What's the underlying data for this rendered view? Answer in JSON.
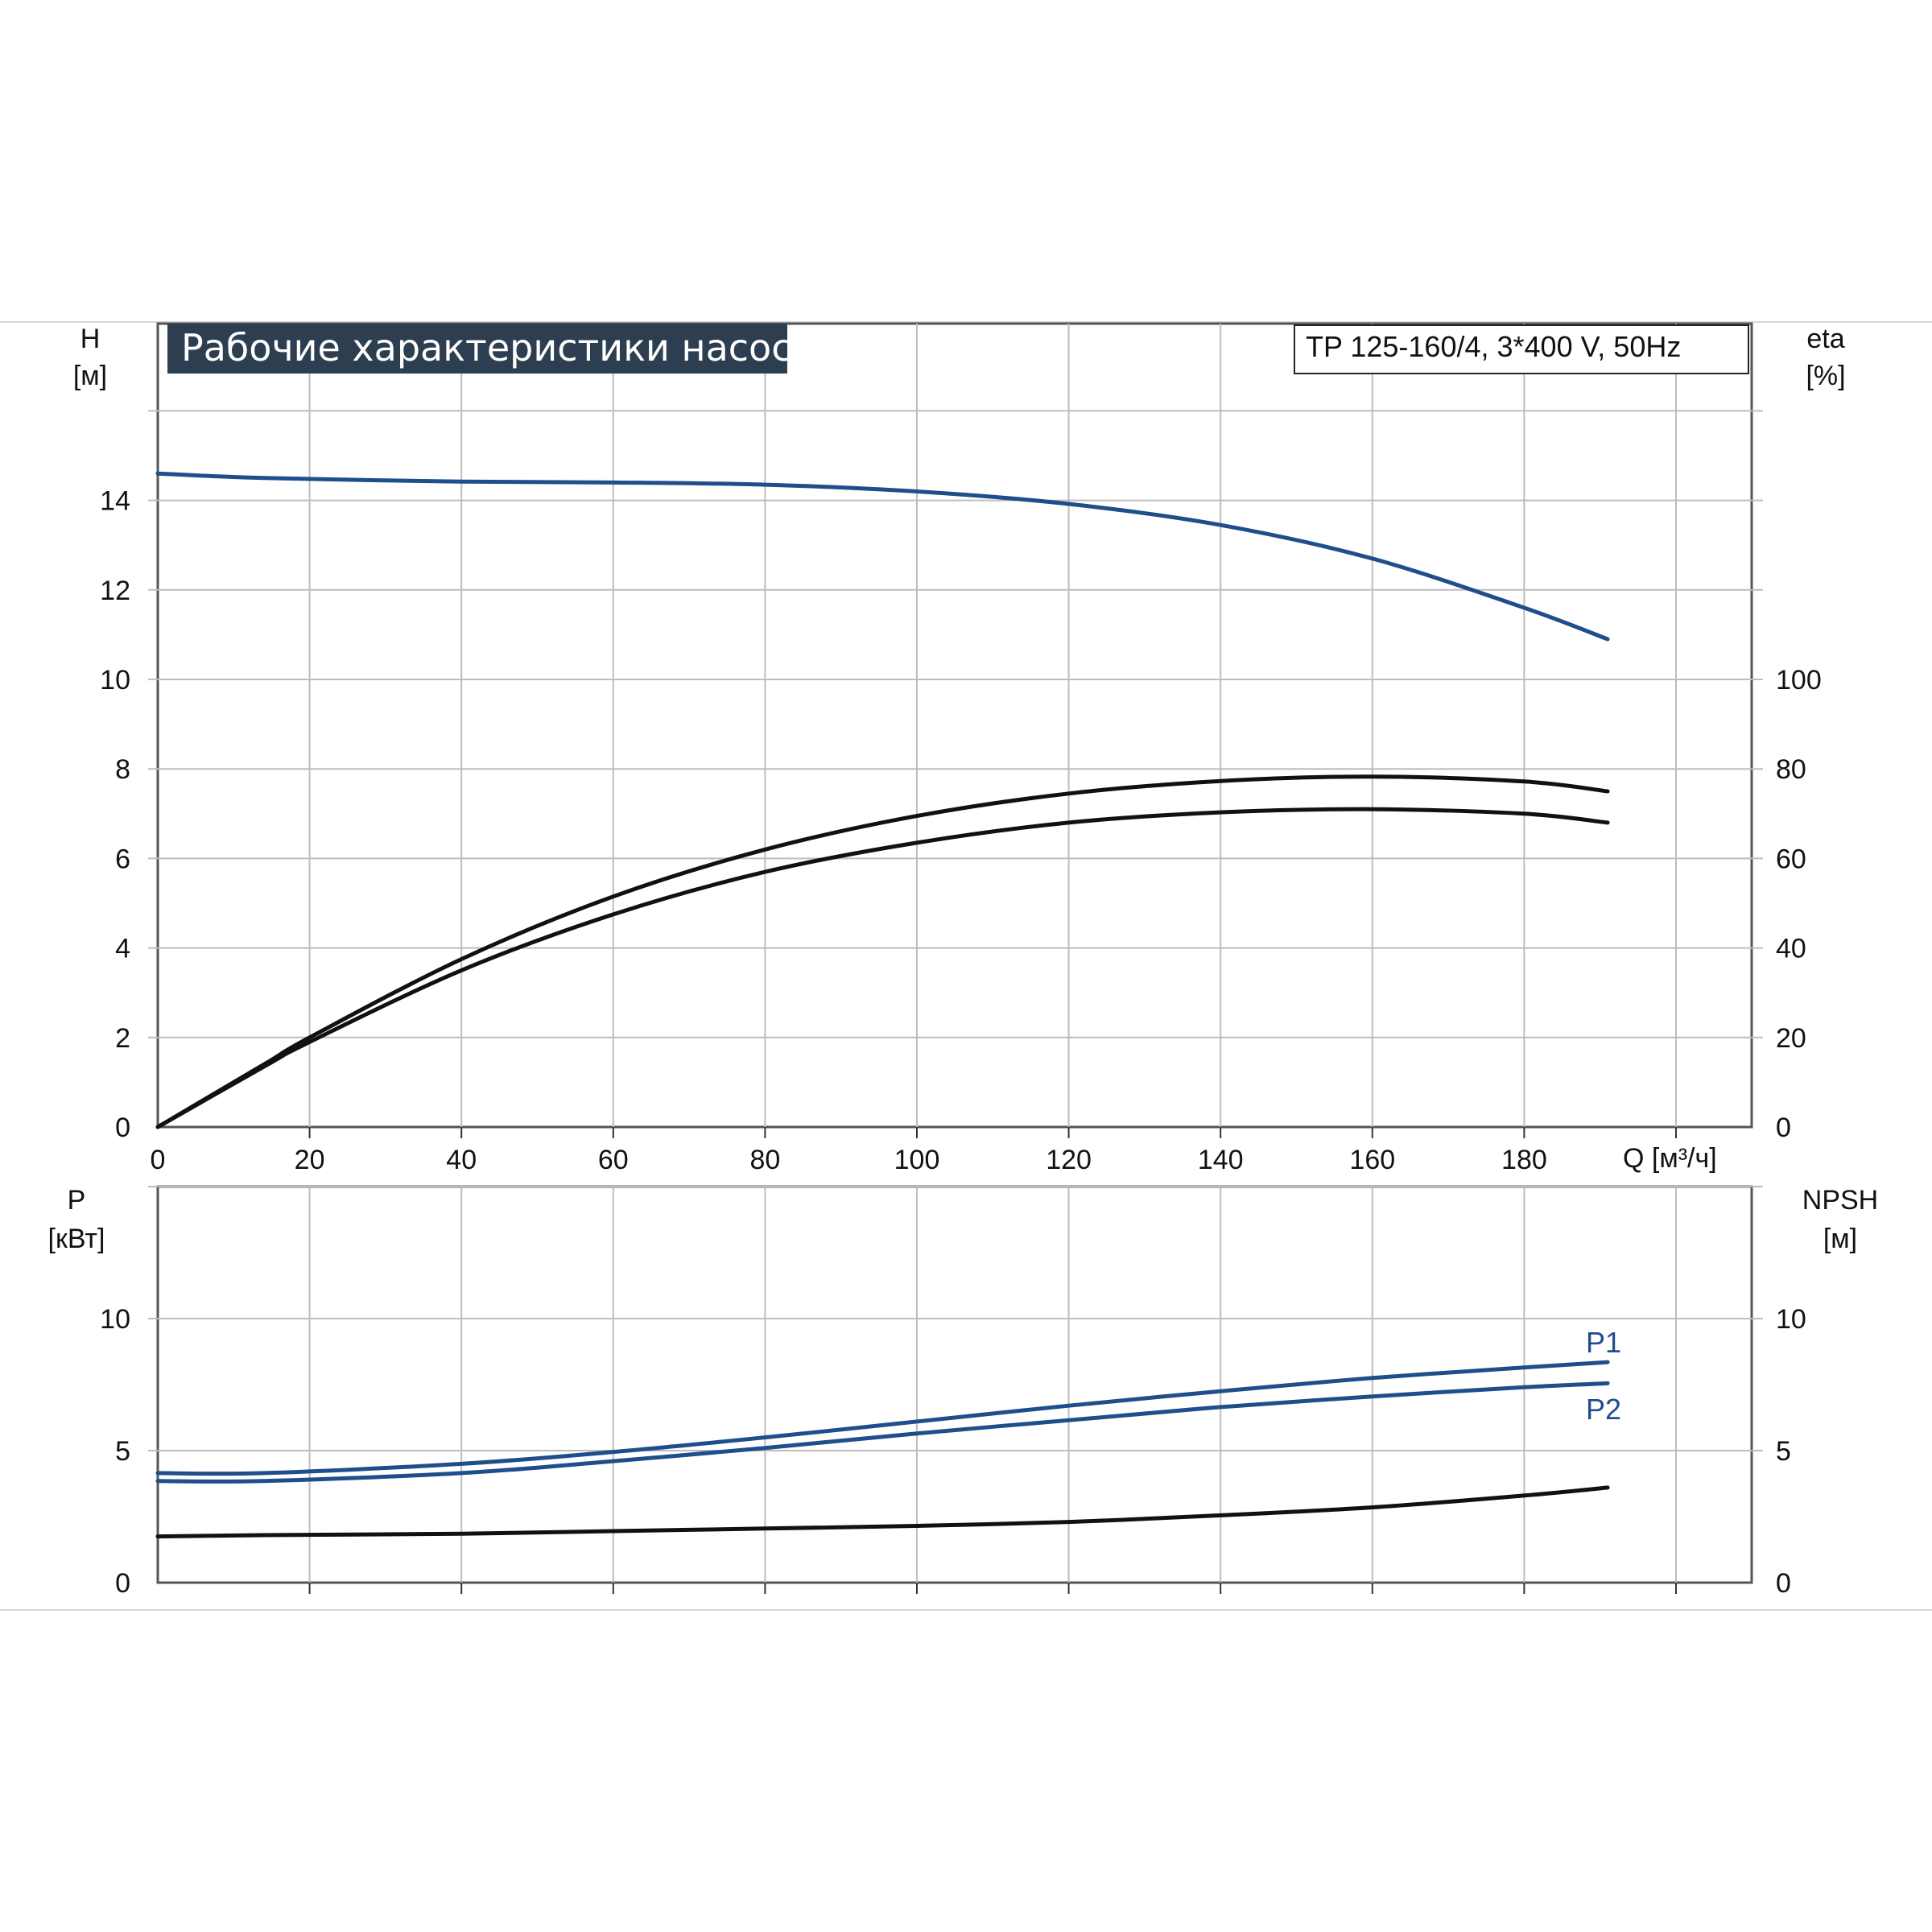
{
  "chart_data": [
    {
      "type": "line",
      "title": "Рабочие характеристики насоса",
      "model": "TP 125-160/4, 3*400 V, 50Hz",
      "xlabel": "Q [м³/ч]",
      "ylabel_left": [
        "H",
        "[м]"
      ],
      "ylabel_right": [
        "eta",
        "[%]"
      ],
      "xlim": [
        0,
        200
      ],
      "ylim_left": [
        0,
        16
      ],
      "ylim_right": [
        0,
        160
      ],
      "x_ticks": [
        "0",
        "20",
        "40",
        "60",
        "80",
        "100",
        "120",
        "140",
        "160",
        "180"
      ],
      "y_ticks_left": [
        "0",
        "2",
        "4",
        "6",
        "8",
        "10",
        "12",
        "14"
      ],
      "y_ticks_right": [
        "0",
        "20",
        "40",
        "60",
        "80",
        "100"
      ],
      "grid": true,
      "series": [
        {
          "axis": "left",
          "color": "#1f4e8c",
          "points": [
            [
              0,
              14.6
            ],
            [
              14,
              14.5
            ],
            [
              40,
              14.42
            ],
            [
              60,
              14.4
            ],
            [
              80,
              14.35
            ],
            [
              100,
              14.2
            ],
            [
              120,
              13.92
            ],
            [
              140,
              13.45
            ],
            [
              160,
              12.7
            ],
            [
              180,
              11.6
            ],
            [
              191,
              10.9
            ]
          ]
        },
        {
          "axis": "right",
          "color": "#111111",
          "points": [
            [
              0,
              0
            ],
            [
              14,
              14
            ],
            [
              20,
              20
            ],
            [
              40,
              37.5
            ],
            [
              60,
              51.5
            ],
            [
              80,
              62
            ],
            [
              100,
              69.5
            ],
            [
              120,
              74.5
            ],
            [
              140,
              77.3
            ],
            [
              160,
              78.3
            ],
            [
              180,
              77.2
            ],
            [
              191,
              75
            ]
          ]
        },
        {
          "axis": "right",
          "color": "#111111",
          "points": [
            [
              0,
              0
            ],
            [
              14,
              13.5
            ],
            [
              20,
              19
            ],
            [
              40,
              35
            ],
            [
              60,
              47.5
            ],
            [
              80,
              57
            ],
            [
              100,
              63.5
            ],
            [
              120,
              68
            ],
            [
              140,
              70.3
            ],
            [
              160,
              71
            ],
            [
              180,
              70
            ],
            [
              191,
              68
            ]
          ]
        }
      ]
    },
    {
      "type": "line",
      "xlim": [
        0,
        200
      ],
      "ylim_left": [
        0,
        15
      ],
      "ylim_right": [
        0,
        15
      ],
      "ylabel_left": [
        "P",
        "[кВт]"
      ],
      "ylabel_right": [
        "NPSH",
        "[м]"
      ],
      "y_ticks_left": [
        "0",
        "5",
        "10"
      ],
      "y_ticks_right": [
        "0",
        "5",
        "10"
      ],
      "grid": true,
      "series": [
        {
          "name": "P1",
          "axis": "left",
          "color": "#1f4e8c",
          "points": [
            [
              0,
              4.15
            ],
            [
              14,
              4.15
            ],
            [
              40,
              4.5
            ],
            [
              60,
              4.95
            ],
            [
              80,
              5.5
            ],
            [
              100,
              6.1
            ],
            [
              120,
              6.7
            ],
            [
              140,
              7.25
            ],
            [
              160,
              7.75
            ],
            [
              180,
              8.15
            ],
            [
              191,
              8.35
            ]
          ]
        },
        {
          "name": "P2",
          "axis": "left",
          "color": "#1f4e8c",
          "points": [
            [
              0,
              3.85
            ],
            [
              14,
              3.85
            ],
            [
              40,
              4.15
            ],
            [
              60,
              4.6
            ],
            [
              80,
              5.1
            ],
            [
              100,
              5.65
            ],
            [
              120,
              6.15
            ],
            [
              140,
              6.65
            ],
            [
              160,
              7.05
            ],
            [
              180,
              7.4
            ],
            [
              191,
              7.55
            ]
          ]
        },
        {
          "axis": "right",
          "color": "#111111",
          "points": [
            [
              0,
              1.75
            ],
            [
              14,
              1.8
            ],
            [
              40,
              1.85
            ],
            [
              60,
              1.95
            ],
            [
              80,
              2.05
            ],
            [
              100,
              2.15
            ],
            [
              120,
              2.3
            ],
            [
              140,
              2.55
            ],
            [
              160,
              2.85
            ],
            [
              180,
              3.3
            ],
            [
              191,
              3.6
            ]
          ]
        }
      ]
    }
  ]
}
